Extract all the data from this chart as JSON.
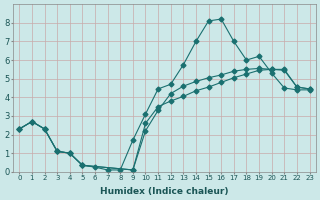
{
  "xlabel": "Humidex (Indice chaleur)",
  "xlim": [
    -0.5,
    23.5
  ],
  "ylim": [
    0,
    9
  ],
  "xticks": [
    0,
    1,
    2,
    3,
    4,
    5,
    6,
    7,
    8,
    9,
    10,
    11,
    12,
    13,
    14,
    15,
    16,
    17,
    18,
    19,
    20,
    21,
    22,
    23
  ],
  "yticks": [
    0,
    1,
    2,
    3,
    4,
    5,
    6,
    7,
    8
  ],
  "bg_color": "#cce8e8",
  "grid_color": "#c8aaaa",
  "line_color": "#1a7070",
  "line1_x": [
    0,
    1,
    2,
    3,
    4,
    5,
    6,
    7,
    8,
    9,
    10,
    11,
    12,
    13,
    14,
    15,
    16,
    17,
    18,
    19,
    20,
    21,
    22,
    23
  ],
  "line1_y": [
    2.3,
    2.7,
    2.3,
    1.1,
    1.0,
    0.35,
    0.25,
    0.1,
    0.1,
    1.7,
    3.1,
    4.45,
    4.7,
    5.75,
    7.0,
    8.1,
    8.2,
    7.0,
    6.0,
    6.2,
    5.3,
    4.5,
    4.4,
    4.4
  ],
  "line2_x": [
    0,
    1,
    2,
    3,
    4,
    5,
    9,
    10,
    11,
    12,
    13,
    14,
    15,
    16,
    17,
    18,
    19,
    20,
    21,
    22,
    23
  ],
  "line2_y": [
    2.3,
    2.7,
    2.3,
    1.1,
    1.0,
    0.35,
    0.1,
    2.2,
    3.3,
    4.2,
    4.6,
    4.85,
    5.05,
    5.2,
    5.4,
    5.5,
    5.55,
    5.5,
    5.45,
    4.55,
    4.45
  ],
  "line3_x": [
    0,
    1,
    2,
    3,
    4,
    5,
    9,
    10,
    11,
    12,
    13,
    14,
    15,
    16,
    17,
    18,
    19,
    20,
    21,
    22,
    23
  ],
  "line3_y": [
    2.3,
    2.7,
    2.3,
    1.1,
    1.0,
    0.35,
    0.1,
    2.6,
    3.5,
    3.8,
    4.05,
    4.35,
    4.55,
    4.8,
    5.05,
    5.25,
    5.45,
    5.5,
    5.5,
    4.55,
    4.45
  ]
}
